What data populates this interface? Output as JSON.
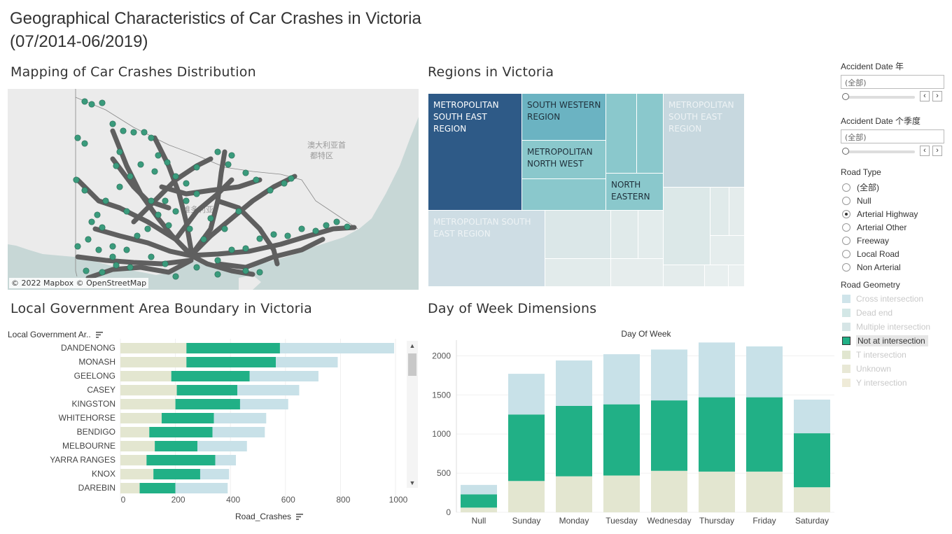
{
  "page": {
    "title_line1": "Geographical Characteristics of Car Crashes in Victoria",
    "title_line2": "(07/2014-06/2019)"
  },
  "map_section": {
    "title": "Mapping of Car Crashes Distribution",
    "attribution": "© 2022 Mapbox © OpenStreetMap",
    "map_labels": [
      "澳大利亚首",
      "都特区",
      "维多利亚"
    ],
    "colors": {
      "land": "#e9e9e9",
      "sea": "#c7d7d6",
      "road": "#5f5f5f",
      "point": "#3a9b7c"
    }
  },
  "regions_section": {
    "title": "Regions in Victoria",
    "cells": [
      {
        "label": "METROPOLITAN SOUTH EAST REGION",
        "color": "#2e5a87",
        "text_color": "#ffffff"
      },
      {
        "label": "SOUTH WESTERN REGION",
        "color": "#6bb3c2",
        "text_color": "#1f2f3a"
      },
      {
        "label": "METROPOLITAN NORTH WEST",
        "color": "#8ac8cc",
        "text_color": "#1f2f3a"
      },
      {
        "label": "NORTH EASTERN",
        "color": "#8ac8cc",
        "text_color": "#1f2f3a"
      },
      {
        "label": "METROPOLITAN SOUTH EAST REGION",
        "color": "#c7d8df",
        "text_color": "#eef3f5"
      },
      {
        "label": "METROPOLITAN SOUTH EAST REGION",
        "color": "#cedde4",
        "text_color": "#eef3f5"
      },
      {
        "label": "",
        "color": "#8ac8cc",
        "text_color": "#1f2f3a"
      }
    ]
  },
  "lga_section": {
    "title": "Local Government Area Boundary in Victoria",
    "dim_header": "Local Government Ar..",
    "axis_title": "Road_Crashes",
    "axis_ticks": [
      "0",
      "200",
      "400",
      "600",
      "800",
      "1000"
    ],
    "x_max": 1000
  },
  "dow_section": {
    "title": "Day of Week Dimensions",
    "axis_header": "Day Of Week",
    "y_ticks": [
      "0",
      "500",
      "1000",
      "1500",
      "2000"
    ]
  },
  "filters": {
    "accident_year": {
      "title": "Accident Date 年",
      "value": "(全部)"
    },
    "accident_quarter": {
      "title": "Accident Date 个季度",
      "value": "(全部)"
    },
    "road_type": {
      "title": "Road Type",
      "options": [
        "(全部)",
        "Null",
        "Arterial Highway",
        "Arterial Other",
        "Freeway",
        "Local Road",
        "Non Arterial"
      ],
      "selected": "Arterial Highway"
    },
    "road_geometry": {
      "title": "Road Geometry",
      "items": [
        {
          "label": "Cross intersection",
          "color": "#cfe4ea"
        },
        {
          "label": "Dead end",
          "color": "#d3e7e6"
        },
        {
          "label": "Multiple intersection",
          "color": "#d6e5e6"
        },
        {
          "label": "Not at intersection",
          "color": "#21b086"
        },
        {
          "label": "T intersection",
          "color": "#e1e6d0"
        },
        {
          "label": "Unknown",
          "color": "#e8e8d6"
        },
        {
          "label": "Y intersection",
          "color": "#efebd8"
        }
      ],
      "selected": "Not at intersection"
    }
  },
  "chart_data": [
    {
      "type": "bar",
      "orientation": "horizontal",
      "stacked": true,
      "categories": [
        "DANDENONG",
        "MONASH",
        "GEELONG",
        "CASEY",
        "KINGSTON",
        "WHITEHORSE",
        "BENDIGO",
        "MELBOURNE",
        "YARRA RANGES",
        "KNOX",
        "DAREBIN"
      ],
      "series": [
        {
          "values": [
            240,
            240,
            185,
            205,
            200,
            150,
            105,
            125,
            95,
            120,
            70
          ],
          "color": "#e3e6d0"
        },
        {
          "values": [
            340,
            325,
            285,
            220,
            235,
            190,
            230,
            155,
            250,
            170,
            130
          ],
          "color": "#21b086"
        },
        {
          "values": [
            415,
            225,
            250,
            225,
            175,
            190,
            190,
            180,
            75,
            105,
            190
          ],
          "color": "#c8e1e8"
        }
      ],
      "xlabel": "Road_Crashes",
      "xlim": [
        0,
        1000
      ],
      "grid": true
    },
    {
      "type": "bar",
      "stacked": true,
      "title": "Day Of Week",
      "categories": [
        "Null",
        "Sunday",
        "Monday",
        "Tuesday",
        "Wednesday",
        "Thursday",
        "Friday",
        "Saturday"
      ],
      "series": [
        {
          "values": [
            60,
            400,
            460,
            470,
            530,
            520,
            520,
            320
          ],
          "color": "#e3e6d0"
        },
        {
          "values": [
            170,
            850,
            900,
            910,
            900,
            950,
            950,
            690
          ],
          "color": "#21b086"
        },
        {
          "values": [
            120,
            520,
            580,
            640,
            650,
            700,
            650,
            430
          ],
          "color": "#c8e1e8"
        }
      ],
      "ylim": [
        0,
        2200
      ],
      "grid": true
    }
  ]
}
